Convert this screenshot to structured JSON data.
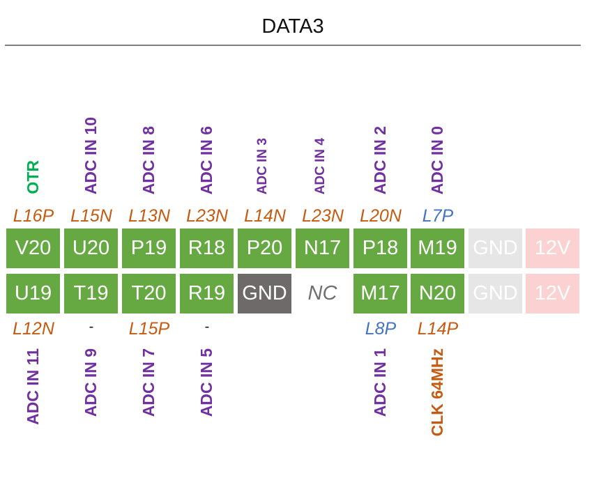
{
  "title": "DATA3",
  "colors": {
    "pin_green": "#66a943",
    "pin_gnd_dark": "#6e6a69",
    "pin_gnd_light": "#e6e6e6",
    "pin_12v": "#fcd1d1",
    "signal_purple": "#7030a0",
    "signal_green": "#00b050",
    "bank_orange": "#c55a11",
    "bank_blue": "#4472c4"
  },
  "top_labels": [
    {
      "signal": "OTR",
      "signal_color": "#00b050",
      "bank": "L16P",
      "bank_color": "#c55a11"
    },
    {
      "signal": "ADC IN 10",
      "signal_color": "#7030a0",
      "bank": "L15N",
      "bank_color": "#c55a11"
    },
    {
      "signal": "ADC IN 8",
      "signal_color": "#7030a0",
      "bank": "L13N",
      "bank_color": "#c55a11"
    },
    {
      "signal": "ADC IN 6",
      "signal_color": "#7030a0",
      "bank": "L23N",
      "bank_color": "#c55a11"
    },
    {
      "signal": "ADC IN 3",
      "signal_color": "#7030a0",
      "bank": "L14N",
      "bank_color": "#c55a11"
    },
    {
      "signal": "ADC IN 4",
      "signal_color": "#7030a0",
      "bank": "L23N",
      "bank_color": "#c55a11"
    },
    {
      "signal": "ADC IN 2",
      "signal_color": "#7030a0",
      "bank": "L20N",
      "bank_color": "#c55a11"
    },
    {
      "signal": "ADC IN 0",
      "signal_color": "#7030a0",
      "bank": "L7P",
      "bank_color": "#4472c4"
    }
  ],
  "row1": [
    {
      "label": "V20",
      "style": "green"
    },
    {
      "label": "U20",
      "style": "green"
    },
    {
      "label": "P19",
      "style": "green"
    },
    {
      "label": "R18",
      "style": "green"
    },
    {
      "label": "P20",
      "style": "green"
    },
    {
      "label": "N17",
      "style": "green"
    },
    {
      "label": "P18",
      "style": "green"
    },
    {
      "label": "M19",
      "style": "green"
    },
    {
      "label": "GND",
      "style": "lgnd"
    },
    {
      "label": "12V",
      "style": "pink"
    }
  ],
  "row2": [
    {
      "label": "U19",
      "style": "green"
    },
    {
      "label": "T19",
      "style": "green"
    },
    {
      "label": "T20",
      "style": "green"
    },
    {
      "label": "R19",
      "style": "green"
    },
    {
      "label": "GND",
      "style": "gray"
    },
    {
      "label": "NC",
      "style": "nc"
    },
    {
      "label": "M17",
      "style": "green"
    },
    {
      "label": "N20",
      "style": "green"
    },
    {
      "label": "GND",
      "style": "lgnd"
    },
    {
      "label": "12V",
      "style": "pink"
    }
  ],
  "bottom_labels": [
    {
      "bank": "L12N",
      "bank_color": "#c55a11",
      "signal": "ADC IN 11",
      "signal_color": "#7030a0"
    },
    {
      "bank": "-",
      "bank_color": "#111111",
      "signal": "ADC IN 9",
      "signal_color": "#7030a0"
    },
    {
      "bank": "L15P",
      "bank_color": "#c55a11",
      "signal": "ADC IN 7",
      "signal_color": "#7030a0"
    },
    {
      "bank": "-",
      "bank_color": "#111111",
      "signal": "ADC IN 5",
      "signal_color": "#7030a0"
    },
    {
      "bank": "",
      "bank_color": "#111111",
      "signal": "",
      "signal_color": "#7030a0"
    },
    {
      "bank": "",
      "bank_color": "#111111",
      "signal": "",
      "signal_color": "#7030a0"
    },
    {
      "bank": "L8P",
      "bank_color": "#4472c4",
      "signal": "ADC IN 1",
      "signal_color": "#7030a0"
    },
    {
      "bank": "L14P",
      "bank_color": "#c55a11",
      "signal": "CLK 64MHz",
      "signal_color": "#c55a11"
    }
  ]
}
